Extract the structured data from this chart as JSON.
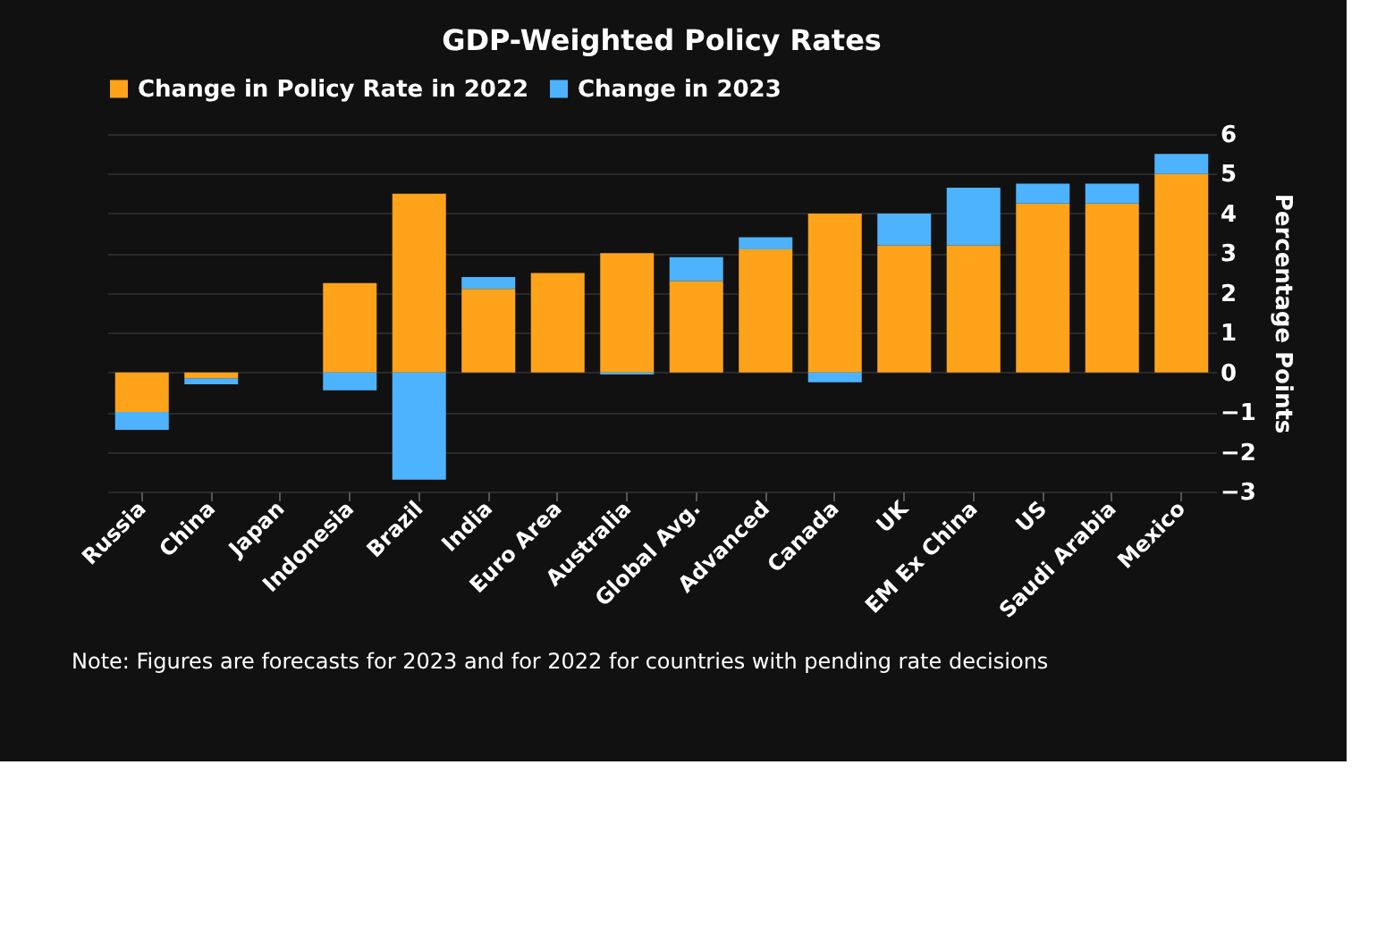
{
  "chart_data": {
    "type": "bar",
    "title": "GDP-Weighted Policy Rates",
    "ylabel": "Percentage Points",
    "categories": [
      "Russia",
      "China",
      "Japan",
      "Indonesia",
      "Brazil",
      "India",
      "Euro Area",
      "Australia",
      "Global Avg.",
      "Advanced",
      "Canada",
      "UK",
      "EM Ex China",
      "US",
      "Saudi Arabia",
      "Mexico"
    ],
    "series": [
      {
        "name": "Change in Policy Rate in 2022",
        "color": "#ffa31a",
        "values": [
          -1.0,
          -0.15,
          0,
          2.25,
          4.5,
          2.1,
          2.5,
          3.0,
          2.3,
          3.1,
          4.0,
          3.2,
          3.2,
          4.25,
          4.25,
          5.0
        ]
      },
      {
        "name": "Change in 2023",
        "color": "#4db3ff",
        "values": [
          -0.45,
          -0.15,
          0,
          -0.45,
          -2.7,
          0.3,
          0,
          -0.05,
          0.6,
          0.3,
          -0.25,
          0.8,
          1.45,
          0.5,
          0.5,
          0.5
        ]
      }
    ],
    "stacked": true,
    "ylim": [
      -3,
      6
    ],
    "yticks": [
      -3,
      -2,
      -1,
      0,
      1,
      2,
      3,
      4,
      5,
      6
    ],
    "grid": "y",
    "legend": "top left",
    "annotations": [
      "Note: Figures are forecasts for 2023 and for 2022 for countries with pending rate decisions"
    ]
  }
}
